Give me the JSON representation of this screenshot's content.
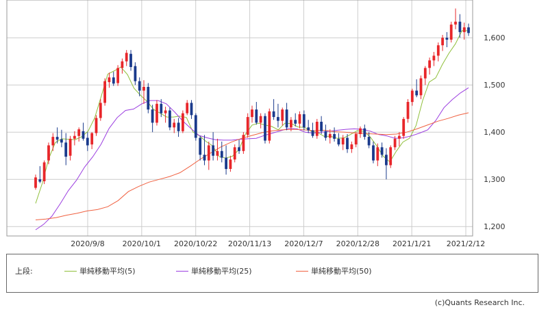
{
  "chart_data": {
    "type": "candlestick",
    "x_ticks": [
      "2020/9/8",
      "2020/10/1",
      "2020/10/22",
      "2020/11/13",
      "2020/12/7",
      "2020/12/28",
      "2021/1/21",
      "2021/2/12"
    ],
    "y_ticks": [
      "1,200",
      "1,300",
      "1,400",
      "1,500",
      "1,600"
    ],
    "ylim": [
      1180,
      1680
    ],
    "grid": true,
    "up_color": "#e8262a",
    "down_color": "#1a3a8c",
    "legend_prefix": "上段:",
    "series": [
      {
        "name": "単純移動平均(5)",
        "color": "#8fbf3a",
        "values": [
          1249,
          1291,
          1344,
          1378,
          1386,
          1385,
          1384,
          1390,
          1402,
          1430,
          1476,
          1523,
          1530,
          1538,
          1522,
          1493,
          1478,
          1465,
          1448,
          1440,
          1432,
          1432,
          1434,
          1431,
          1400,
          1392,
          1380,
          1371,
          1348,
          1345,
          1349,
          1363,
          1396,
          1415,
          1419,
          1415,
          1412,
          1405,
          1419,
          1418,
          1411,
          1410,
          1402,
          1399,
          1391,
          1391,
          1387,
          1388,
          1395,
          1403,
          1402,
          1390,
          1371,
          1349,
          1337,
          1360,
          1379,
          1387,
          1414,
          1467,
          1506,
          1515,
          1543,
          1567,
          1587,
          1615,
          1615
        ]
      },
      {
        "name": "単純移動平均(25)",
        "color": "#9b3de0",
        "values": [
          1193,
          1205,
          1222,
          1248,
          1276,
          1298,
          1326,
          1348,
          1374,
          1408,
          1431,
          1446,
          1449,
          1460,
          1467,
          1467,
          1460,
          1443,
          1424,
          1408,
          1393,
          1388,
          1384,
          1383,
          1383,
          1385,
          1386,
          1387,
          1393,
          1398,
          1403,
          1408,
          1407,
          1400,
          1398,
          1400,
          1402,
          1404,
          1406,
          1407,
          1406,
          1402,
          1395,
          1392,
          1387,
          1388,
          1392,
          1398,
          1405,
          1425,
          1452,
          1469,
          1483,
          1494
        ]
      },
      {
        "name": "単純移動平均(50)",
        "color": "#f06040",
        "values": [
          1214,
          1216,
          1219,
          1224,
          1228,
          1233,
          1236,
          1242,
          1255,
          1274,
          1285,
          1294,
          1300,
          1306,
          1314,
          1328,
          1343,
          1356,
          1369,
          1379,
          1387,
          1393,
          1399,
          1403,
          1405,
          1406,
          1405,
          1403,
          1404,
          1401,
          1400,
          1398,
          1397,
          1396,
          1395,
          1396,
          1400,
          1407,
          1415,
          1423,
          1429,
          1436,
          1441
        ]
      }
    ],
    "candles": [
      [
        1282,
        1310,
        1278,
        1304
      ],
      [
        1300,
        1328,
        1292,
        1295
      ],
      [
        1296,
        1340,
        1290,
        1336
      ],
      [
        1340,
        1378,
        1332,
        1372
      ],
      [
        1372,
        1398,
        1360,
        1390
      ],
      [
        1390,
        1410,
        1376,
        1384
      ],
      [
        1385,
        1405,
        1368,
        1378
      ],
      [
        1378,
        1398,
        1330,
        1348
      ],
      [
        1350,
        1392,
        1340,
        1386
      ],
      [
        1386,
        1402,
        1372,
        1392
      ],
      [
        1392,
        1410,
        1380,
        1406
      ],
      [
        1402,
        1420,
        1382,
        1386
      ],
      [
        1388,
        1400,
        1360,
        1372
      ],
      [
        1374,
        1400,
        1364,
        1398
      ],
      [
        1398,
        1436,
        1392,
        1430
      ],
      [
        1430,
        1470,
        1424,
        1462
      ],
      [
        1462,
        1514,
        1456,
        1508
      ],
      [
        1506,
        1526,
        1494,
        1516
      ],
      [
        1516,
        1528,
        1498,
        1503
      ],
      [
        1504,
        1542,
        1498,
        1536
      ],
      [
        1536,
        1556,
        1524,
        1550
      ],
      [
        1550,
        1574,
        1540,
        1568
      ],
      [
        1566,
        1574,
        1530,
        1538
      ],
      [
        1540,
        1548,
        1500,
        1508
      ],
      [
        1508,
        1516,
        1476,
        1488
      ],
      [
        1488,
        1510,
        1460,
        1496
      ],
      [
        1496,
        1504,
        1440,
        1448
      ],
      [
        1448,
        1458,
        1400,
        1420
      ],
      [
        1420,
        1468,
        1414,
        1460
      ],
      [
        1460,
        1470,
        1432,
        1440
      ],
      [
        1440,
        1454,
        1420,
        1446
      ],
      [
        1446,
        1452,
        1404,
        1410
      ],
      [
        1410,
        1428,
        1398,
        1420
      ],
      [
        1420,
        1430,
        1390,
        1402
      ],
      [
        1402,
        1446,
        1398,
        1440
      ],
      [
        1440,
        1468,
        1436,
        1462
      ],
      [
        1462,
        1468,
        1428,
        1436
      ],
      [
        1436,
        1440,
        1382,
        1388
      ],
      [
        1388,
        1392,
        1340,
        1352
      ],
      [
        1352,
        1394,
        1330,
        1340
      ],
      [
        1340,
        1380,
        1320,
        1372
      ],
      [
        1372,
        1400,
        1340,
        1350
      ],
      [
        1350,
        1386,
        1340,
        1360
      ],
      [
        1360,
        1380,
        1336,
        1346
      ],
      [
        1346,
        1372,
        1310,
        1322
      ],
      [
        1322,
        1350,
        1316,
        1342
      ],
      [
        1342,
        1374,
        1336,
        1368
      ],
      [
        1368,
        1384,
        1354,
        1360
      ],
      [
        1360,
        1400,
        1354,
        1394
      ],
      [
        1394,
        1440,
        1388,
        1432
      ],
      [
        1432,
        1456,
        1420,
        1448
      ],
      [
        1448,
        1464,
        1416,
        1420
      ],
      [
        1420,
        1440,
        1408,
        1434
      ],
      [
        1434,
        1440,
        1376,
        1382
      ],
      [
        1382,
        1450,
        1376,
        1444
      ],
      [
        1444,
        1470,
        1426,
        1432
      ],
      [
        1432,
        1460,
        1410,
        1424
      ],
      [
        1424,
        1452,
        1414,
        1448
      ],
      [
        1448,
        1462,
        1404,
        1410
      ],
      [
        1410,
        1432,
        1402,
        1426
      ],
      [
        1426,
        1440,
        1412,
        1418
      ],
      [
        1418,
        1444,
        1408,
        1438
      ],
      [
        1438,
        1446,
        1404,
        1410
      ],
      [
        1410,
        1426,
        1398,
        1404
      ],
      [
        1404,
        1420,
        1388,
        1392
      ],
      [
        1392,
        1428,
        1386,
        1422
      ],
      [
        1422,
        1434,
        1396,
        1402
      ],
      [
        1402,
        1416,
        1382,
        1388
      ],
      [
        1388,
        1406,
        1376,
        1396
      ],
      [
        1396,
        1410,
        1380,
        1386
      ],
      [
        1386,
        1398,
        1370,
        1374
      ],
      [
        1374,
        1394,
        1362,
        1388
      ],
      [
        1388,
        1396,
        1356,
        1364
      ],
      [
        1364,
        1380,
        1356,
        1374
      ],
      [
        1374,
        1400,
        1368,
        1396
      ],
      [
        1396,
        1412,
        1388,
        1408
      ],
      [
        1408,
        1416,
        1384,
        1390
      ],
      [
        1390,
        1400,
        1366,
        1372
      ],
      [
        1372,
        1380,
        1334,
        1340
      ],
      [
        1340,
        1376,
        1328,
        1368
      ],
      [
        1368,
        1378,
        1346,
        1352
      ],
      [
        1352,
        1366,
        1300,
        1330
      ],
      [
        1330,
        1372,
        1324,
        1368
      ],
      [
        1368,
        1392,
        1362,
        1386
      ],
      [
        1386,
        1400,
        1370,
        1392
      ],
      [
        1392,
        1432,
        1386,
        1428
      ],
      [
        1428,
        1470,
        1420,
        1464
      ],
      [
        1464,
        1492,
        1456,
        1488
      ],
      [
        1488,
        1512,
        1474,
        1478
      ],
      [
        1478,
        1520,
        1470,
        1514
      ],
      [
        1514,
        1540,
        1500,
        1536
      ],
      [
        1536,
        1558,
        1522,
        1552
      ],
      [
        1552,
        1570,
        1540,
        1562
      ],
      [
        1562,
        1590,
        1550,
        1584
      ],
      [
        1584,
        1606,
        1572,
        1600
      ],
      [
        1600,
        1612,
        1580,
        1596
      ],
      [
        1596,
        1634,
        1590,
        1628
      ],
      [
        1628,
        1662,
        1618,
        1634
      ],
      [
        1634,
        1650,
        1600,
        1612
      ],
      [
        1612,
        1632,
        1596,
        1622
      ],
      [
        1622,
        1630,
        1604,
        1610
      ]
    ]
  },
  "credit": "(c)Quants Research Inc."
}
